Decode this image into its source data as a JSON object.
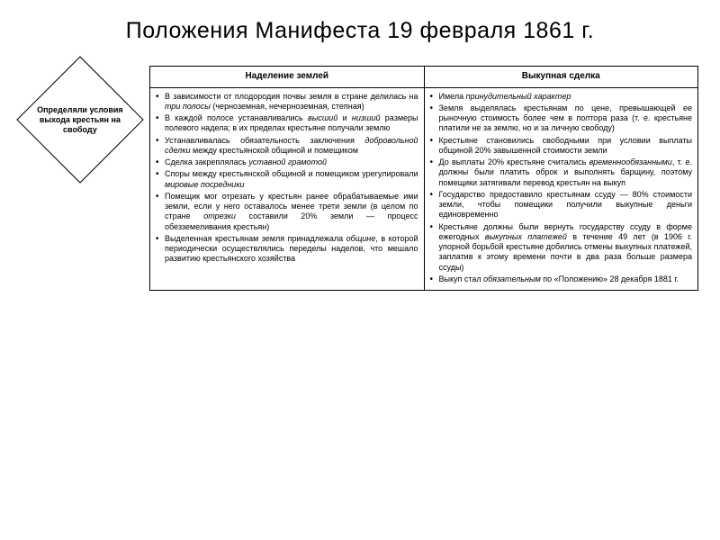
{
  "title": "Положения Манифеста 19 февраля 1861 г.",
  "diamond": "Определяли условия выхода крестьян на свободу",
  "table": {
    "headers": [
      "Наделение землей",
      "Выкупная сделка"
    ],
    "col1": [
      "В зависимости от плодородия почвы земля в стране делилась на <em>три полосы</em> (черноземная, нечерноземная, степная)",
      "В каждой полосе устанавливались <em>высший</em> и <em>низший</em> размеры полевого надела; в их пределах крестьяне получали землю",
      "Устанавливалась обязательность заключения <em>добровольной сделки</em> между крестьянской общиной и помещиком",
      "Сделка закреплялась <em>уставной грамотой</em>",
      "Споры между крестьянской общиной и помещиком урегулировали <em>мировые посредники</em>",
      "Помещик мог отрезать у крестьян ранее обрабатываемые ими земли, если у него оставалось менее трети земли (в целом по стране <em>отрезки</em> составили 20% земли — процесс обезземеливания крестьян)",
      "Выделенная крестьянам земля принадлежала <em>общине</em>, в которой периодически осуществлялись переделы наделов, что мешало развитию крестьянского хозяйства"
    ],
    "col2": [
      "Имела <em>принудительный характер</em>",
      "Земля выделялась крестьянам по цене, превышающей ее рыночную стоимость более чем в полтора раза (т. е. крестьяне платили не за землю, но и за личную свободу)",
      "Крестьяне становились свободными при условии выплаты общиной 20% завышенной стоимости земли",
      "До выплаты 20% крестьяне считались <em>временнообязанными</em>, т. е. должны были платить оброк и выполнять барщину, поэтому помещики затягивали перевод крестьян на выкуп",
      "Государство предоставило крестьянам ссуду — 80% стоимости земли, чтобы помещики получили выкупные деньги единовременно",
      "Крестьяне должны были вернуть государству ссуду в форме ежегодных <em>выкупных платежей</em> в течение 49 лет (в 1906 г. упорной борьбой крестьяне добились отмены выкупных платежей, заплатив к этому времени почти в два раза больше размера ссуды)",
      "Выкуп стал <em>обязательным</em> по «Положению» 28 декабря 1881 г."
    ]
  },
  "colors": {
    "background": "#ffffff",
    "text": "#000000",
    "border": "#000000"
  }
}
